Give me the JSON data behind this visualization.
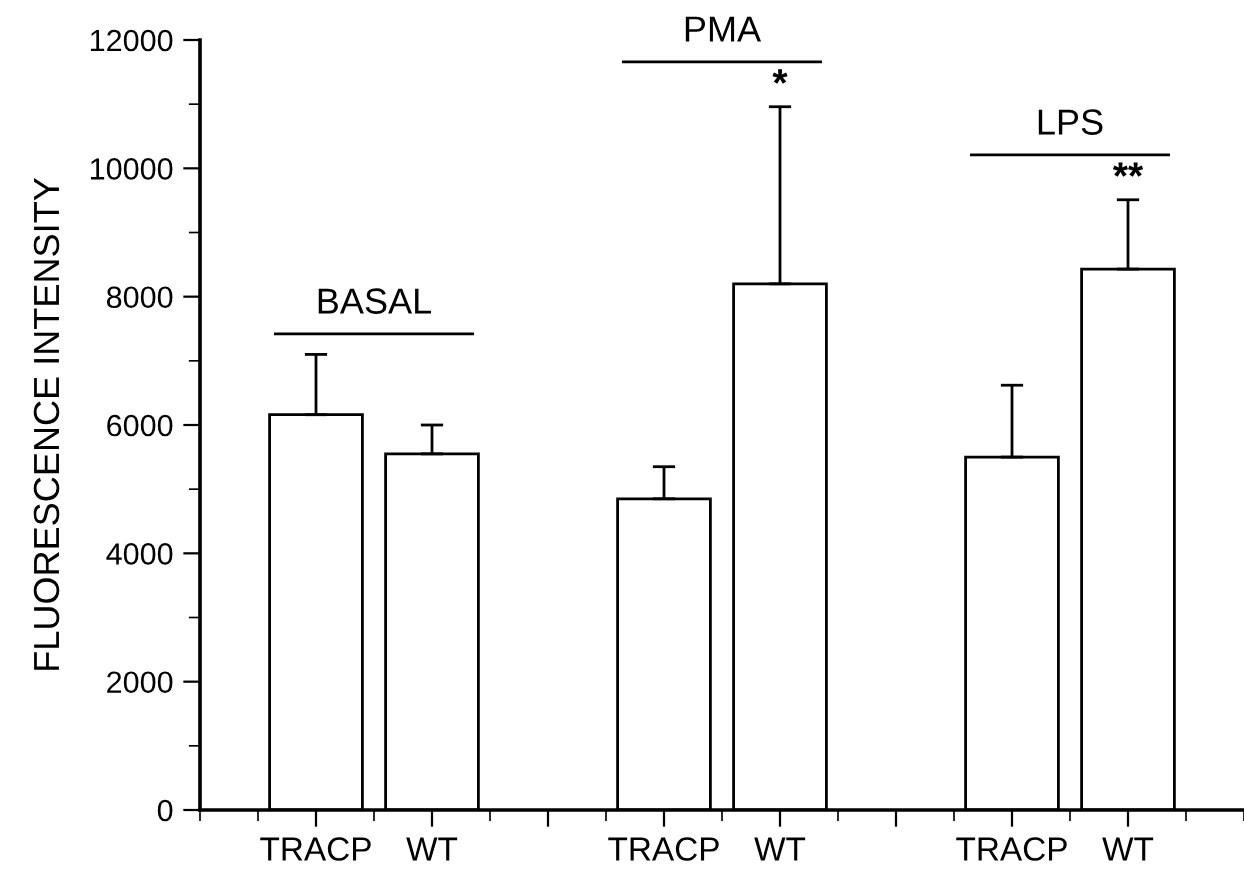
{
  "chart_data": {
    "type": "bar",
    "ylabel": "FLUORESCENCE INTENSITY",
    "categories": [
      "TRACP",
      "WT",
      null,
      "TRACP",
      "WT",
      null,
      "TRACP",
      "WT"
    ],
    "values": [
      6160,
      5550,
      null,
      4850,
      8200,
      null,
      5500,
      8430
    ],
    "errors": [
      [
        6160,
        7100
      ],
      [
        5550,
        6000
      ],
      null,
      [
        4850,
        5350
      ],
      [
        8200,
        10960
      ],
      null,
      [
        5500,
        6620
      ],
      [
        8430,
        9510
      ]
    ],
    "color": "#ffffff",
    "ylim": [
      0,
      12000
    ],
    "yticks": [
      0,
      2000,
      4000,
      6000,
      8000,
      10000,
      12000
    ],
    "grid": false,
    "annotations": [
      "BASAL",
      "PMA",
      "LPS",
      {
        "text": "*",
        "y": 10960
      },
      {
        "text": "**",
        "y": 9510
      }
    ]
  }
}
